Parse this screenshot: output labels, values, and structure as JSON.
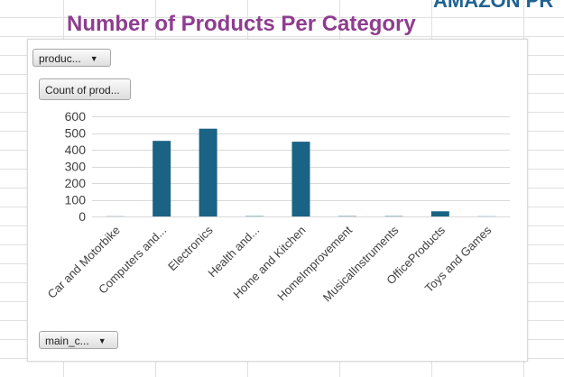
{
  "banner_text": "AMAZON PR",
  "chart_data": {
    "type": "bar",
    "title": "Number of Products Per Category",
    "xlabel": "",
    "ylabel": "",
    "ylim": [
      0,
      600
    ],
    "yticks": [
      0,
      100,
      200,
      300,
      400,
      500,
      600
    ],
    "grid": true,
    "legend": "none",
    "categories": [
      "Car and Motorbike",
      "Computers and...",
      "Electronics",
      "Health and...",
      "Home and Kitchen",
      "HomeImprovement",
      "MusicalInstruments",
      "OfficeProducts",
      "Toys and Games"
    ],
    "values": [
      1,
      453,
      526,
      2,
      448,
      2,
      2,
      31,
      1
    ],
    "bar_color": "#1a6385"
  },
  "pivot_buttons": {
    "filter_label": "produc...",
    "values_label": "Count of prod...",
    "axis_label": "main_c..."
  },
  "colors": {
    "title": "#8e3d8f",
    "banner": "#1f6391",
    "bar": "#1a6385"
  }
}
